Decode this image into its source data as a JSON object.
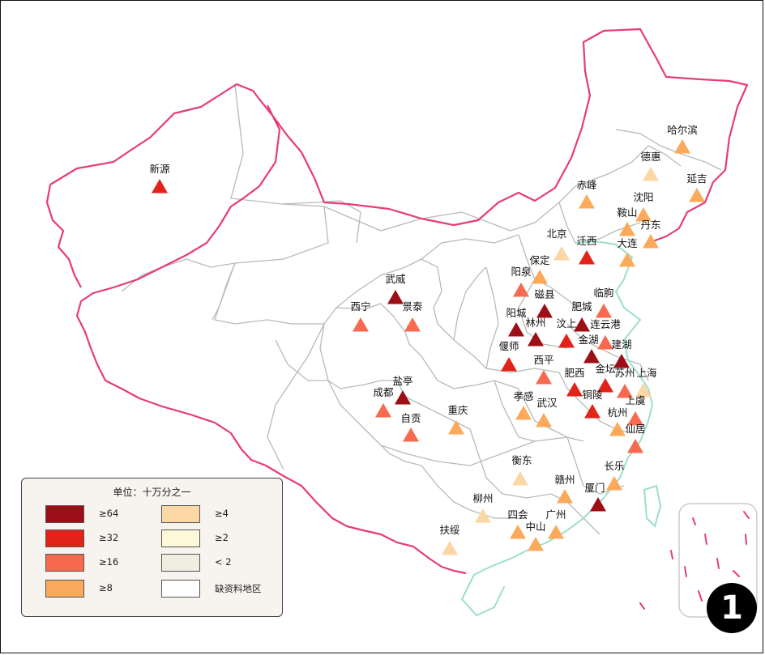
{
  "legend": {
    "title": "单位：十万分之一",
    "items": [
      {
        "label": "≥64",
        "color": "#9c0f16"
      },
      {
        "label": "≥32",
        "color": "#e2231a"
      },
      {
        "label": "≥16",
        "color": "#f76a50"
      },
      {
        "label": "≥8",
        "color": "#fbaa5c"
      },
      {
        "label": "≥4",
        "color": "#fbd7a6"
      },
      {
        "label": "≥2",
        "color": "#fdf8d8"
      },
      {
        "label": "< 2",
        "color": "#efeee0"
      },
      {
        "label": "缺资料地区",
        "color": "#ffffff"
      }
    ]
  },
  "panel_number": "1",
  "cities": [
    {
      "name": "新源",
      "category": "≥32"
    },
    {
      "name": "哈尔滨",
      "category": "≥8"
    },
    {
      "name": "德惠",
      "category": "≥4"
    },
    {
      "name": "延吉",
      "category": "≥8"
    },
    {
      "name": "赤峰",
      "category": "≥8"
    },
    {
      "name": "沈阳",
      "category": "≥8"
    },
    {
      "name": "鞍山",
      "category": "≥8"
    },
    {
      "name": "丹东",
      "category": "≥8"
    },
    {
      "name": "北京",
      "category": "≥4"
    },
    {
      "name": "迁西",
      "category": "≥32"
    },
    {
      "name": "大连",
      "category": "≥8"
    },
    {
      "name": "保定",
      "category": "≥8"
    },
    {
      "name": "阳泉",
      "category": "≥16"
    },
    {
      "name": "武威",
      "category": "≥64"
    },
    {
      "name": "西宁",
      "category": "≥16"
    },
    {
      "name": "景泰",
      "category": "≥16"
    },
    {
      "name": "磁县",
      "category": "≥64"
    },
    {
      "name": "临朐",
      "category": "≥16"
    },
    {
      "name": "肥城",
      "category": "≥64"
    },
    {
      "name": "阳城",
      "category": "≥64"
    },
    {
      "name": "林州",
      "category": "≥64"
    },
    {
      "name": "汶上",
      "category": "≥32"
    },
    {
      "name": "连云港",
      "category": "≥16"
    },
    {
      "name": "金湖",
      "category": "≥64"
    },
    {
      "name": "建湖",
      "category": "≥64"
    },
    {
      "name": "偃师",
      "category": "≥32"
    },
    {
      "name": "西平",
      "category": "≥16"
    },
    {
      "name": "盐亭",
      "category": "≥64"
    },
    {
      "name": "成都",
      "category": "≥16"
    },
    {
      "name": "肥西",
      "category": "≥32"
    },
    {
      "name": "金坛",
      "category": "≥32"
    },
    {
      "name": "苏州",
      "category": "≥16"
    },
    {
      "name": "上海",
      "category": "≥4"
    },
    {
      "name": "孝感",
      "category": "≥8"
    },
    {
      "name": "武汉",
      "category": "≥8"
    },
    {
      "name": "铜陵",
      "category": "≥32"
    },
    {
      "name": "上虞",
      "category": "≥16"
    },
    {
      "name": "自贡",
      "category": "≥16"
    },
    {
      "name": "重庆",
      "category": "≥8"
    },
    {
      "name": "杭州",
      "category": "≥8"
    },
    {
      "name": "仙居",
      "category": "≥16"
    },
    {
      "name": "衡东",
      "category": "≥4"
    },
    {
      "name": "长乐",
      "category": "≥8"
    },
    {
      "name": "赣州",
      "category": "≥8"
    },
    {
      "name": "厦门",
      "category": "≥64"
    },
    {
      "name": "柳州",
      "category": "≥4"
    },
    {
      "name": "四会",
      "category": "≥8"
    },
    {
      "name": "广州",
      "category": "≥8"
    },
    {
      "name": "中山",
      "category": "≥8"
    },
    {
      "name": "扶绥",
      "category": "≥4"
    }
  ]
}
